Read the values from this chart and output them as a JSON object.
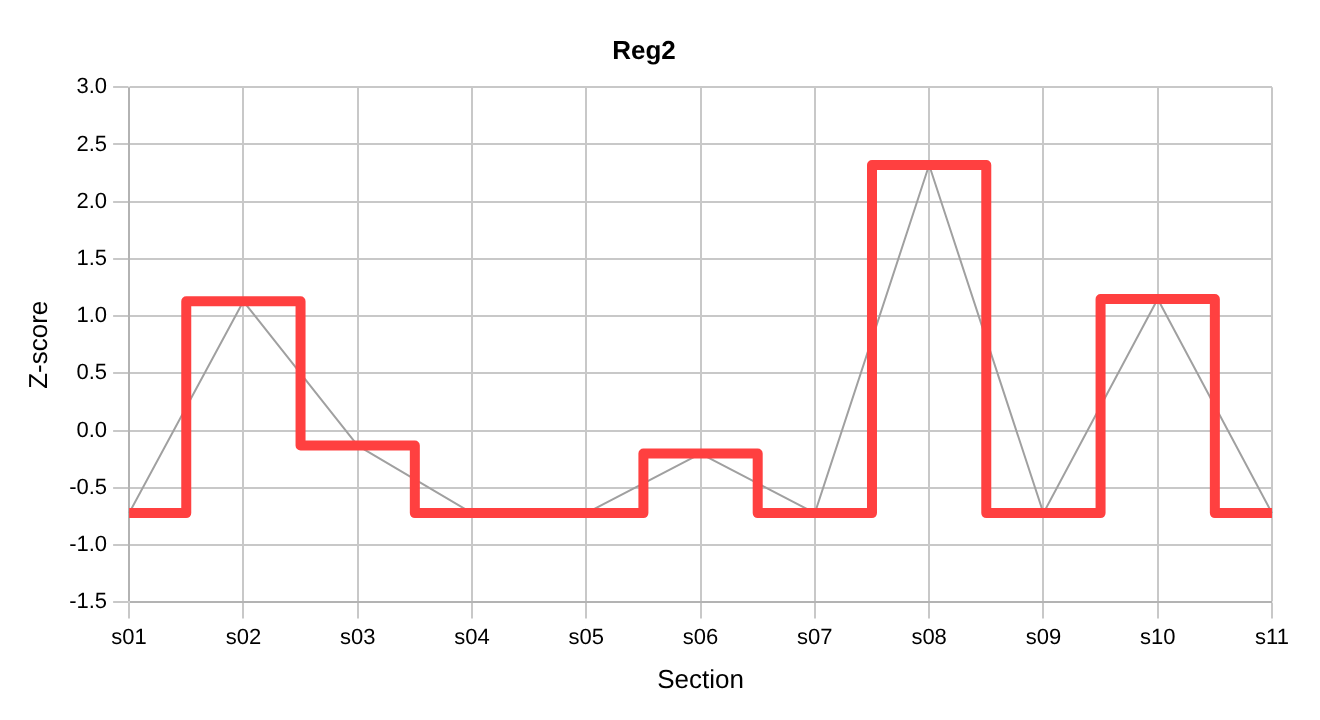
{
  "chart_data": {
    "type": "line",
    "title": "Reg2",
    "xlabel": "Section",
    "ylabel": "Z-score",
    "categories": [
      "s01",
      "s02",
      "s03",
      "s04",
      "s05",
      "s06",
      "s07",
      "s08",
      "s09",
      "s10",
      "s11"
    ],
    "series": [
      {
        "type": "step",
        "color": "#ff4040",
        "values": [
          -0.72,
          1.13,
          -0.13,
          -0.72,
          -0.72,
          -0.2,
          -0.72,
          2.32,
          -0.72,
          1.15,
          -0.72
        ]
      },
      {
        "type": "line",
        "color": "#a0a0a0",
        "values": [
          -0.72,
          1.13,
          -0.13,
          -0.72,
          -0.72,
          -0.2,
          -0.72,
          2.32,
          -0.72,
          1.15,
          -0.72
        ]
      }
    ],
    "ylim": [
      -1.5,
      3.0
    ],
    "yticks": [
      {
        "value": -1.5,
        "label": "-1.5"
      },
      {
        "value": -1,
        "label": "-1.0"
      },
      {
        "value": -0.5,
        "label": "-0.5"
      },
      {
        "value": 0,
        "label": "0.0"
      },
      {
        "value": 0.5,
        "label": "0.5"
      },
      {
        "value": 1,
        "label": "1.0"
      },
      {
        "value": 1.5,
        "label": "1.5"
      },
      {
        "value": 2,
        "label": "2.0"
      },
      {
        "value": 2.5,
        "label": "2.5"
      },
      {
        "value": 3,
        "label": "3.0"
      }
    ],
    "grid": true,
    "legend": false,
    "marker": "none",
    "line_style": "solid"
  }
}
